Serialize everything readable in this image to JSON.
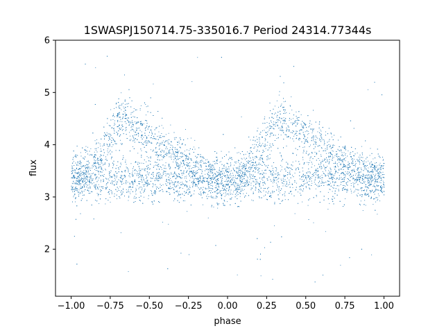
{
  "chart_data": {
    "type": "scatter",
    "title": "1SWASPJ150714.75-335016.7 Period 24314.77344s",
    "xlabel": "phase",
    "ylabel": "flux",
    "xlim": [
      -1.1,
      1.1
    ],
    "ylim": [
      1.1,
      6.0
    ],
    "xticks": [
      -1.0,
      -0.75,
      -0.5,
      -0.25,
      0.0,
      0.25,
      0.5,
      0.75,
      1.0
    ],
    "xtick_labels": [
      "−1.00",
      "−0.75",
      "−0.50",
      "−0.25",
      "0.00",
      "0.25",
      "0.50",
      "0.75",
      "1.00"
    ],
    "yticks": [
      2,
      3,
      4,
      5,
      6
    ],
    "ytick_labels": [
      "2",
      "3",
      "4",
      "5",
      "6"
    ],
    "grid": false,
    "point_color": "#1f77b4",
    "series": [
      {
        "description_points": [
          {
            "phase": -1.0,
            "flux": 3.3
          },
          {
            "phase": -0.9,
            "flux": 3.5
          },
          {
            "phase": -0.8,
            "flux": 3.9
          },
          {
            "phase": -0.7,
            "flux": 4.45
          },
          {
            "phase": -0.65,
            "flux": 4.55
          },
          {
            "phase": -0.6,
            "flux": 4.4
          },
          {
            "phase": -0.5,
            "flux": 4.15
          },
          {
            "phase": -0.4,
            "flux": 3.95
          },
          {
            "phase": -0.3,
            "flux": 3.75
          },
          {
            "phase": -0.2,
            "flux": 3.55
          },
          {
            "phase": -0.1,
            "flux": 3.35
          },
          {
            "phase": 0.0,
            "flux": 3.2
          },
          {
            "phase": 0.05,
            "flux": 3.15
          },
          {
            "phase": 0.1,
            "flux": 3.45
          },
          {
            "phase": 0.2,
            "flux": 3.9
          },
          {
            "phase": 0.3,
            "flux": 4.45
          },
          {
            "phase": 0.35,
            "flux": 4.55
          },
          {
            "phase": 0.4,
            "flux": 4.4
          },
          {
            "phase": 0.5,
            "flux": 4.15
          },
          {
            "phase": 0.6,
            "flux": 3.95
          },
          {
            "phase": 0.7,
            "flux": 3.75
          },
          {
            "phase": 0.8,
            "flux": 3.55
          },
          {
            "phase": 0.9,
            "flux": 3.4
          },
          {
            "phase": 1.0,
            "flux": 3.3
          }
        ],
        "baseline_flux": 3.35,
        "scatter_sigma": 0.22,
        "outlier_range": [
          1.3,
          5.8
        ]
      }
    ]
  }
}
